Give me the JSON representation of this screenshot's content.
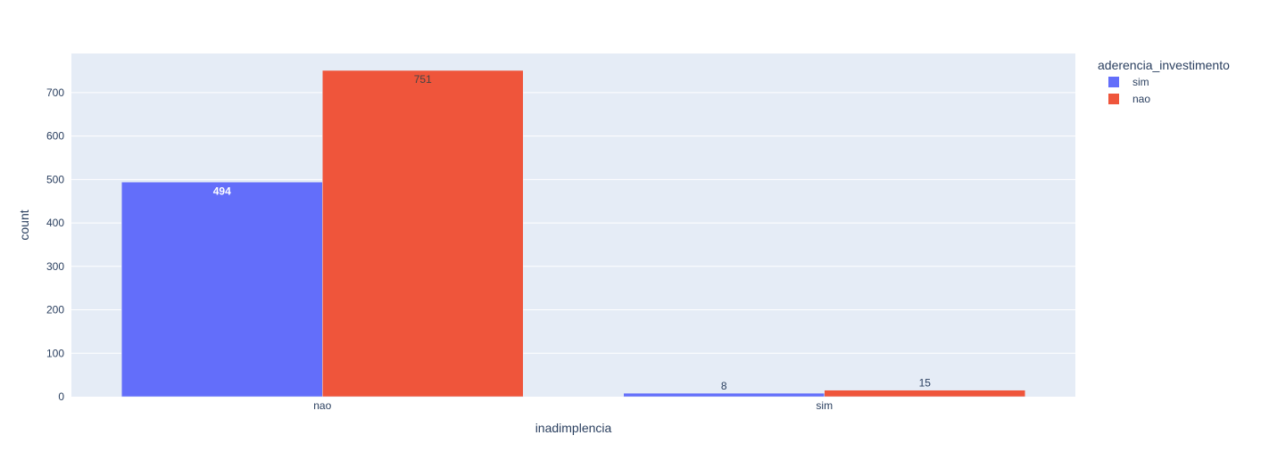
{
  "chart_data": {
    "type": "bar",
    "barmode": "group",
    "xlabel": "inadimplencia",
    "ylabel": "count",
    "categories": [
      "nao",
      "sim"
    ],
    "ylim": [
      0,
      790
    ],
    "yticks": [
      0,
      100,
      200,
      300,
      400,
      500,
      600,
      700
    ],
    "grid": true,
    "legend": {
      "title": "aderencia_investimento",
      "position": "top-right"
    },
    "series": [
      {
        "name": "sim",
        "values": [
          494,
          8
        ],
        "color": "#636efa"
      },
      {
        "name": "nao",
        "values": [
          751,
          15
        ],
        "color": "#EF553B"
      }
    ],
    "colors": {
      "plot_background": "#E5ECF6",
      "gridline": "#ffffff",
      "text": "#2a3f5f"
    }
  }
}
